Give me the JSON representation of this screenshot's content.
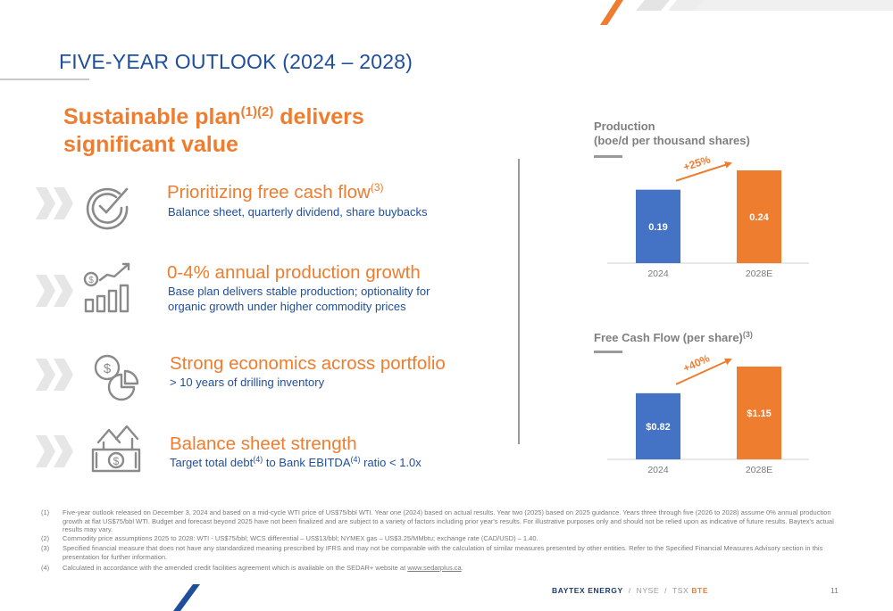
{
  "slide": {
    "title": "FIVE-YEAR OUTLOOK (2024 – 2028)",
    "headline_line1": "Sustainable plan",
    "headline_sup": "(1)(2)",
    "headline_line1_end": " delivers",
    "headline_line2": "significant value",
    "page_number": "11"
  },
  "items": [
    {
      "heading": "Prioritizing free cash flow",
      "sup": "(3)",
      "sub": "Balance sheet, quarterly dividend, share buybacks",
      "icon": "check-dial-icon"
    },
    {
      "heading": "0-4% annual production growth",
      "sub_line1": "Base plan delivers stable production; optionality for",
      "sub_line2": "organic growth under higher commodity prices",
      "icon": "growth-bars-icon"
    },
    {
      "heading": "Strong economics across portfolio",
      "sub": "> 10 years of drilling inventory",
      "icon": "money-pie-icon"
    },
    {
      "heading": "Balance sheet strength",
      "sub_a": "Target total debt",
      "sub_sup1": "(4)",
      "sub_b": " to Bank EBITDA",
      "sub_sup2": "(4)",
      "sub_c": " ratio < 1.0x",
      "icon": "house-money-icon"
    }
  ],
  "chart_data": [
    {
      "type": "bar",
      "title_line1": "Production",
      "title_line2": "(boe/d per thousand shares)",
      "categories": [
        "2024",
        "2028E"
      ],
      "values": [
        0.19,
        0.24
      ],
      "value_labels": [
        "0.19",
        "0.24"
      ],
      "colors": [
        "#4472c4",
        "#ee7d30"
      ],
      "growth_label": "+25%",
      "ylim": [
        0,
        0.24
      ],
      "grid": false
    },
    {
      "type": "bar",
      "title": "Free Cash Flow (per share)",
      "title_sup": "(3)",
      "categories": [
        "2024",
        "2028E"
      ],
      "values": [
        0.82,
        1.15
      ],
      "value_labels": [
        "$0.82",
        "$1.15"
      ],
      "colors": [
        "#4472c4",
        "#ee7d30"
      ],
      "growth_label": "+40%",
      "ylim": [
        0,
        1.15
      ],
      "grid": false
    }
  ],
  "footnotes": [
    {
      "num": "(1)",
      "text": "Five-year outlook released on December 3, 2024 and based on a mid-cycle WTI price of US$75/bbl WTI. Year one (2024) based on actual results. Year two (2025) based on 2025 guidance. Years three through five (2026 to 2028) assume 0% annual production growth at flat US$75/bbl WTI. Budget and forecast beyond 2025 have not been finalized and are subject to a variety of factors including prior year's results. For illustrative purposes only and should not be relied upon as indicative of future results. Baytex's actual results may vary."
    },
    {
      "num": "(2)",
      "text": "Commodity price assumptions 2025 to 2028: WTI - US$75/bbl; WCS differential – US$13/bbl; NYMEX gas – US$3.25/MMbtu; exchange rate (CAD/USD) – 1.40."
    },
    {
      "num": "(3)",
      "text": "Specified financial measure that does not have any standardized meaning prescribed by IFRS and may not be comparable with the calculation of similar measures presented by other entities. Refer to the Specified Financial Measures Advisory section in this presentation for further information."
    },
    {
      "num": "(4)",
      "text_before": "Calculated in accordance with the amended credit facilities agreement which is available on the SEDAR+ website at ",
      "link": "www.sedarplus.ca",
      "text_after": "."
    }
  ],
  "brand": {
    "name": "BAYTEX ENERGY",
    "sep": "/",
    "exchange1": "NYSE",
    "exchange2": "TSX",
    "ticker": "BTE"
  },
  "colors": {
    "accent_orange": "#ee7d30",
    "navy": "#1f4e9a",
    "bar_blue": "#4472c4",
    "grey": "#9a9a9a"
  }
}
